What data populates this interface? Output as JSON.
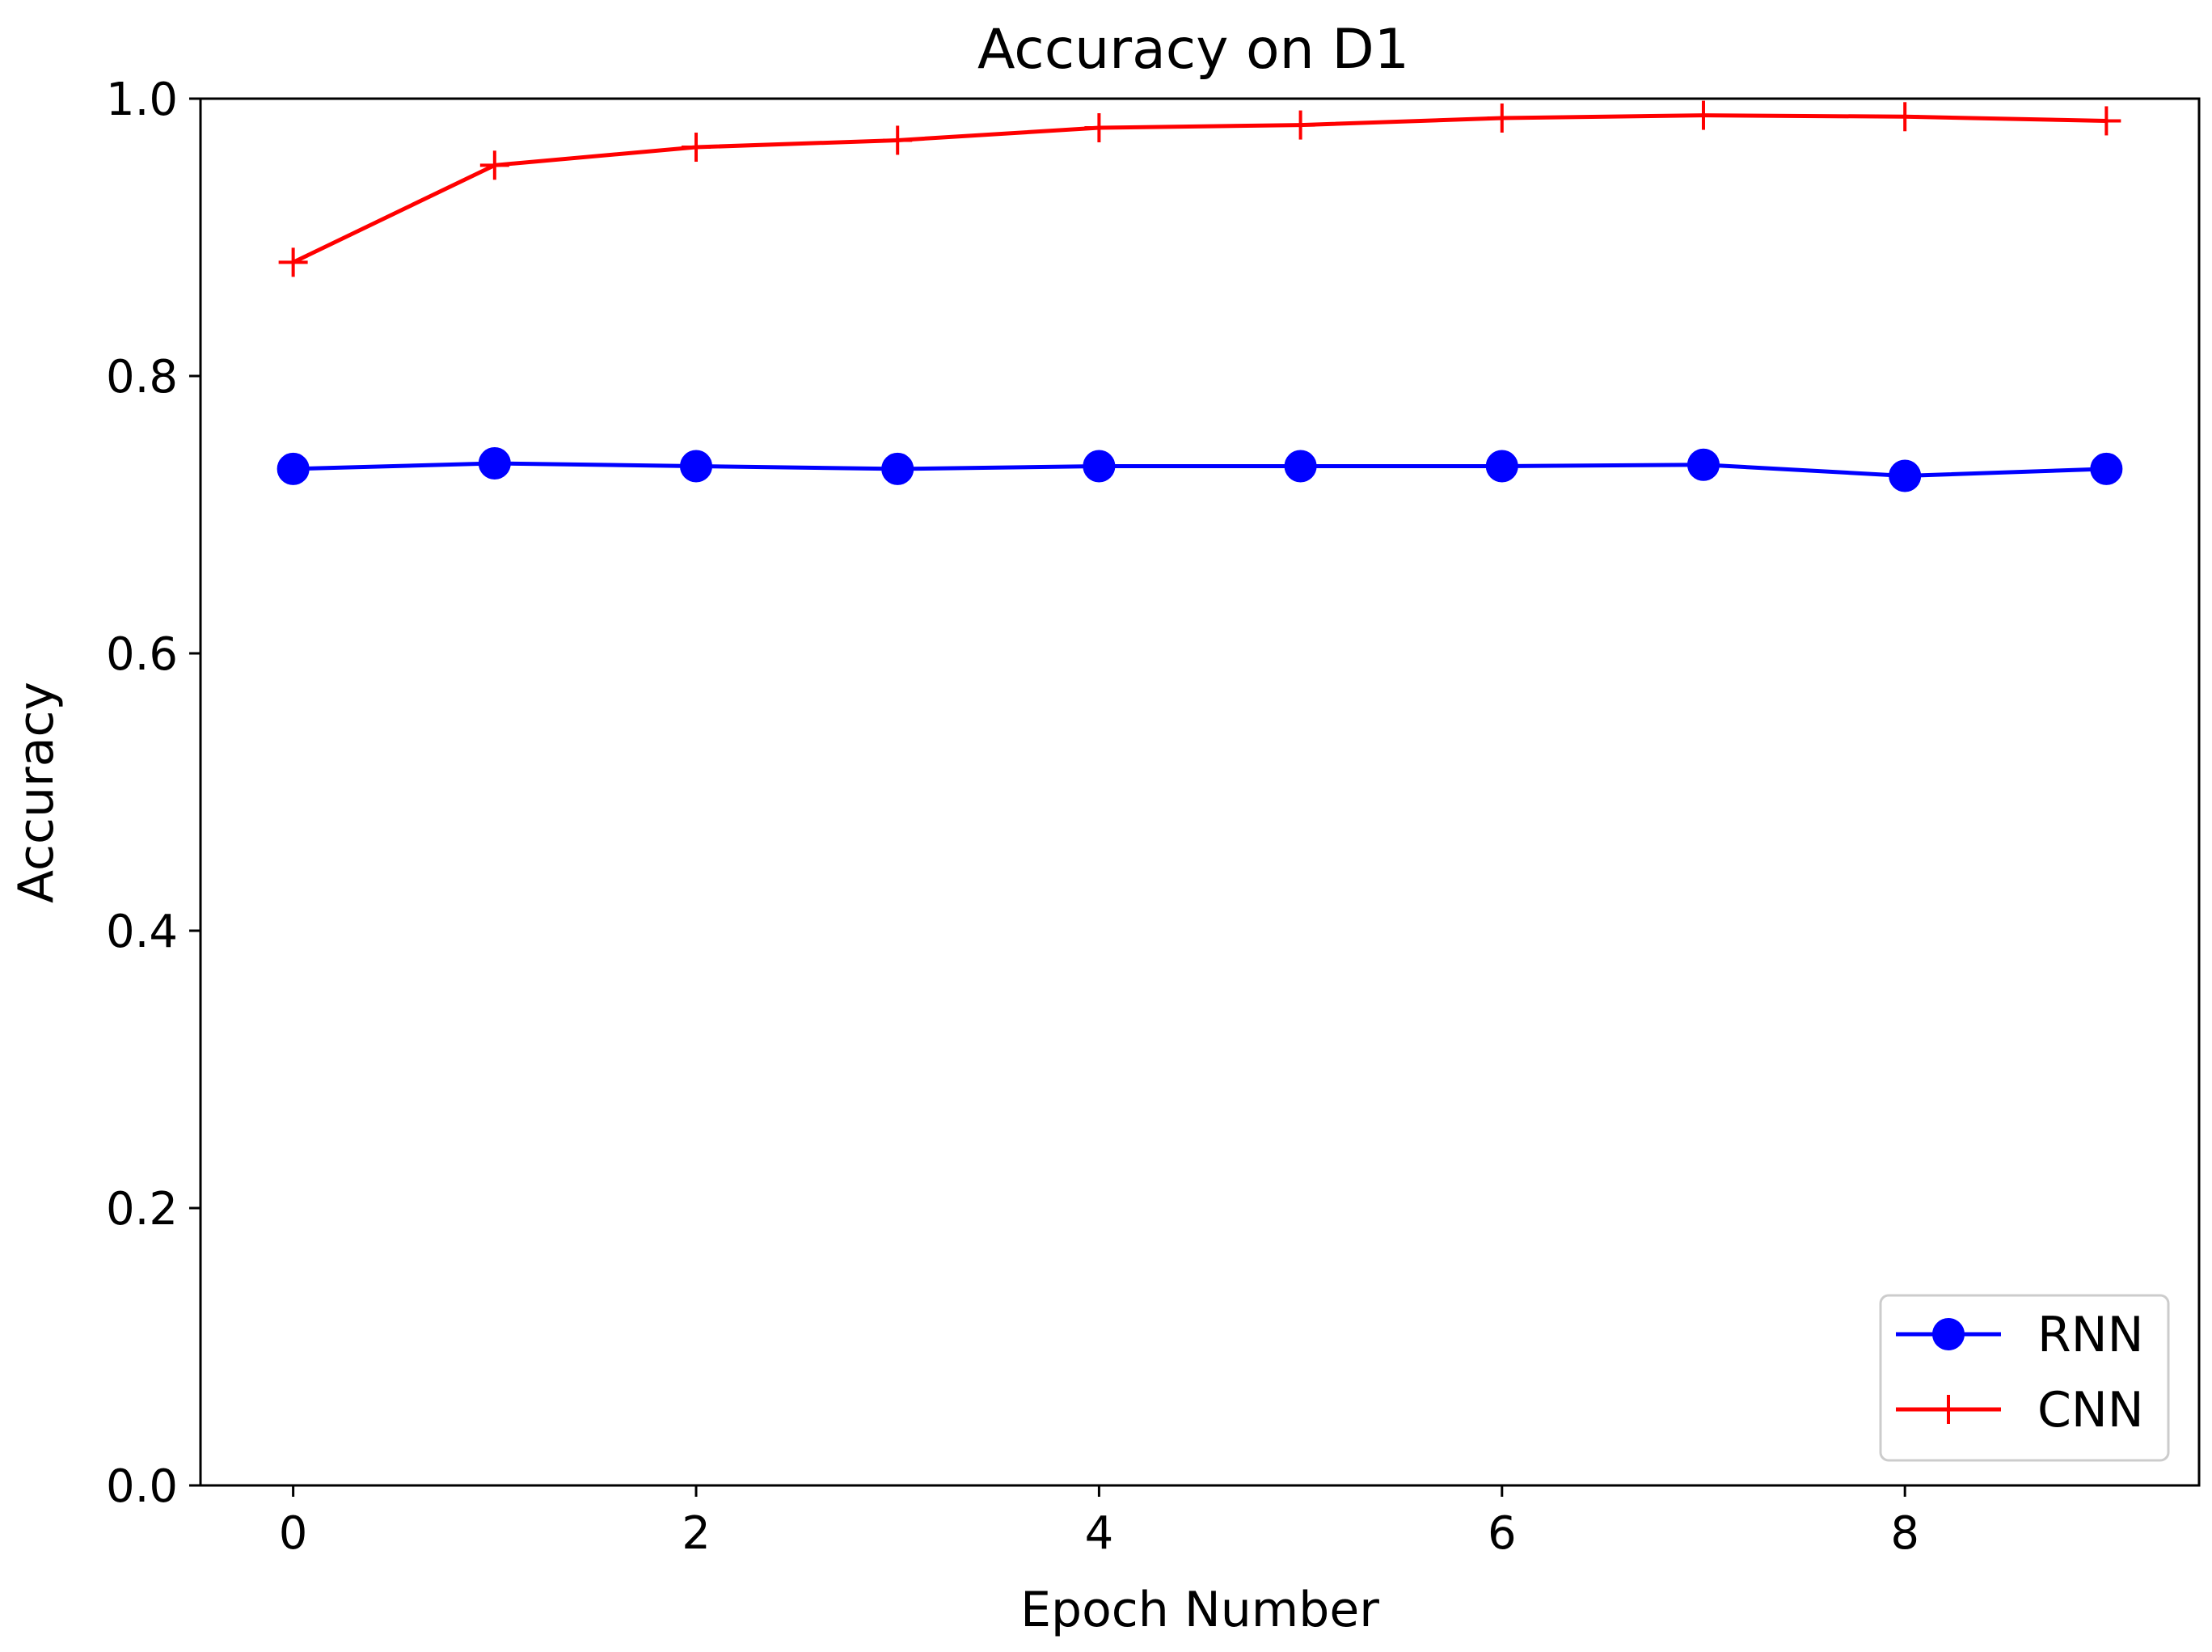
{
  "chart_data": {
    "type": "line",
    "title": "Accuracy on D1",
    "xlabel": "Epoch Number",
    "ylabel": "Accuracy",
    "x": [
      0,
      1,
      2,
      3,
      4,
      5,
      6,
      7,
      8,
      9
    ],
    "xlim": [
      -0.46,
      9.46
    ],
    "ylim": [
      0.0,
      1.0
    ],
    "xticks": [
      0,
      2,
      4,
      6,
      8
    ],
    "yticks": [
      0.0,
      0.2,
      0.4,
      0.6,
      0.8,
      1.0
    ],
    "xtick_labels": [
      "0",
      "2",
      "4",
      "6",
      "8"
    ],
    "ytick_labels": [
      "0.0",
      "0.2",
      "0.4",
      "0.6",
      "0.8",
      "1.0"
    ],
    "grid": false,
    "legend_position": "bottom-right",
    "series": [
      {
        "name": "RNN",
        "color": "#0000ff",
        "marker": "circle",
        "values": [
          0.733,
          0.737,
          0.735,
          0.733,
          0.735,
          0.735,
          0.735,
          0.736,
          0.728,
          0.733
        ]
      },
      {
        "name": "CNN",
        "color": "#ff0000",
        "marker": "plus",
        "values": [
          0.882,
          0.952,
          0.965,
          0.97,
          0.979,
          0.981,
          0.986,
          0.988,
          0.987,
          0.984
        ]
      }
    ]
  }
}
